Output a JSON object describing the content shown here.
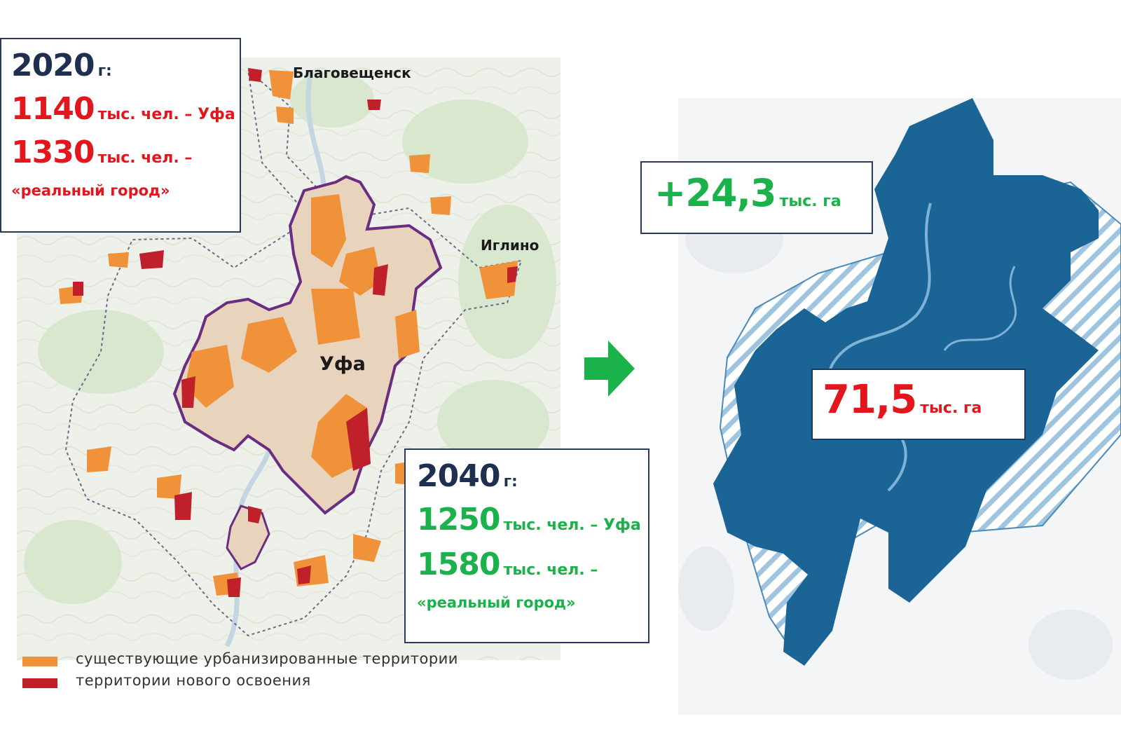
{
  "box_2020": {
    "year": "2020",
    "year_suffix": "г:",
    "line1_value": "1140",
    "line1_text": "тыс. чел. – Уфа",
    "line2_value": "1330",
    "line2_text": "тыс. чел. –",
    "line3_text": "«реальный город»"
  },
  "box_2040": {
    "year": "2040",
    "year_suffix": "г:",
    "line1_value": "1250",
    "line1_text": "тыс. чел. – Уфа",
    "line2_value": "1580",
    "line2_text": "тыс. чел. –",
    "line3_text": "«реальный город»"
  },
  "places": {
    "blagoveshchensk": "Благовещенск",
    "iglino": "Иглино",
    "ufa": "Уфа"
  },
  "legend": [
    {
      "label": "существующие урбанизированные территории",
      "color": "#f0923a"
    },
    {
      "label": "территории нового освоения",
      "color": "#c0202a"
    }
  ],
  "area_increase": {
    "value": "+24,3",
    "unit": "тыс. га"
  },
  "area_total": {
    "value": "71,5",
    "unit": "тыс. га"
  },
  "colors": {
    "urban": "#f0923a",
    "new_development": "#c0202a",
    "city_fill": "#1a6496",
    "increase_green": "#1bb24b",
    "total_red": "#e3161d",
    "arrow": "#1bb24b"
  },
  "icons": {
    "transition_arrow": "right-arrow-icon"
  }
}
